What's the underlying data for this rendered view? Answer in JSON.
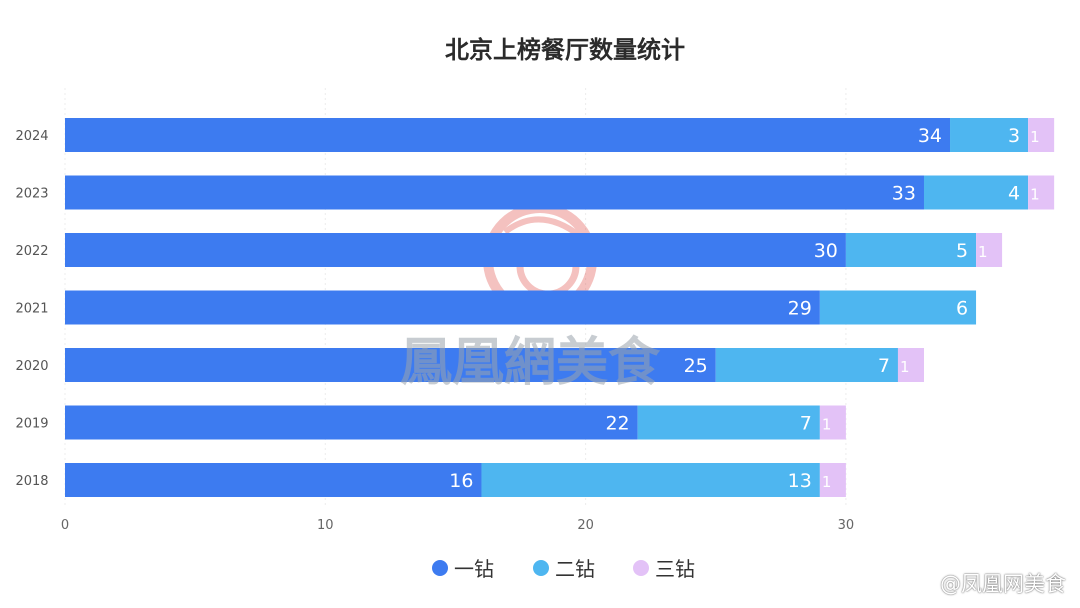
{
  "chart_data": {
    "type": "bar",
    "orientation": "horizontal",
    "stacked": true,
    "title": "北京上榜餐厅数量统计",
    "categories": [
      "2024",
      "2023",
      "2022",
      "2021",
      "2020",
      "2019",
      "2018"
    ],
    "series": [
      {
        "name": "一钻",
        "color": "#3d7bf0",
        "values": [
          34,
          33,
          30,
          29,
          25,
          22,
          16
        ]
      },
      {
        "name": "二钻",
        "color": "#4eb6f0",
        "values": [
          3,
          4,
          5,
          6,
          7,
          7,
          13
        ]
      },
      {
        "name": "三钻",
        "color": "#e3c2f7",
        "values": [
          1,
          1,
          1,
          0,
          1,
          1,
          1
        ]
      }
    ],
    "xaxis": {
      "ticks": [
        "0",
        "10",
        "20",
        "30"
      ],
      "range": [
        0,
        38
      ]
    },
    "grid": true,
    "legend": "bottom-center",
    "data_labels": true
  },
  "watermark": {
    "text": "鳳凰網美食"
  },
  "credit": "@凤凰网美食"
}
